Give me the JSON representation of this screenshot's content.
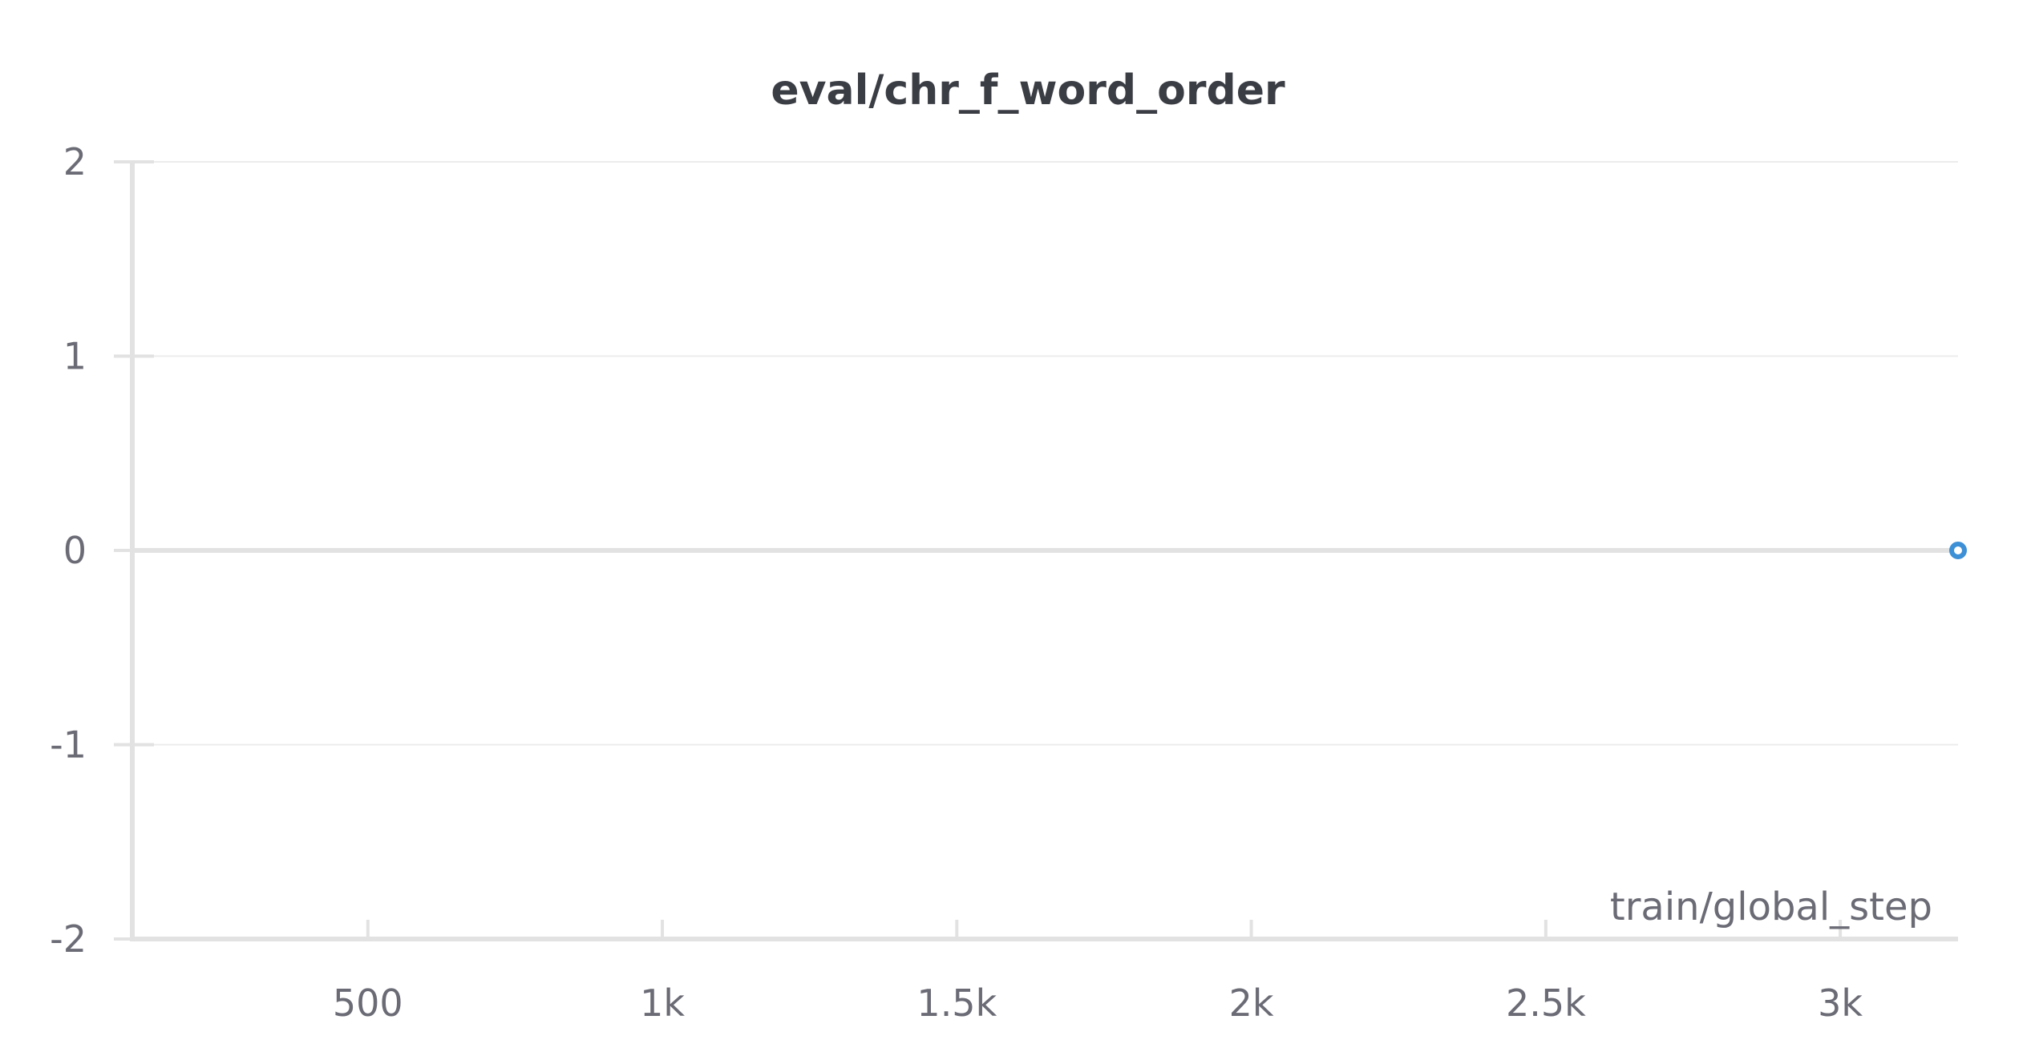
{
  "chart_data": {
    "type": "line",
    "title": "eval/chr_f_word_order",
    "xlabel": "train/global_step",
    "ylabel": "",
    "xlim": [
      100,
      3200
    ],
    "ylim": [
      -2,
      2
    ],
    "x_ticks": [
      {
        "value": 500,
        "label": "500"
      },
      {
        "value": 1000,
        "label": "1k"
      },
      {
        "value": 1500,
        "label": "1.5k"
      },
      {
        "value": 2000,
        "label": "2k"
      },
      {
        "value": 2500,
        "label": "2.5k"
      },
      {
        "value": 3000,
        "label": "3k"
      }
    ],
    "y_ticks": [
      {
        "value": 2,
        "label": "2"
      },
      {
        "value": 1,
        "label": "1"
      },
      {
        "value": 0,
        "label": "0"
      },
      {
        "value": -1,
        "label": "-1"
      },
      {
        "value": -2,
        "label": "-2"
      }
    ],
    "grid": true,
    "legend": "none",
    "series": [
      {
        "color": "#3d8fd6",
        "points": [
          {
            "x": 3200,
            "y": 0
          }
        ]
      }
    ],
    "colors": {
      "grid": "#ececec",
      "axis": "#e2e2e2",
      "zero_line": "#e2e2e2"
    }
  }
}
